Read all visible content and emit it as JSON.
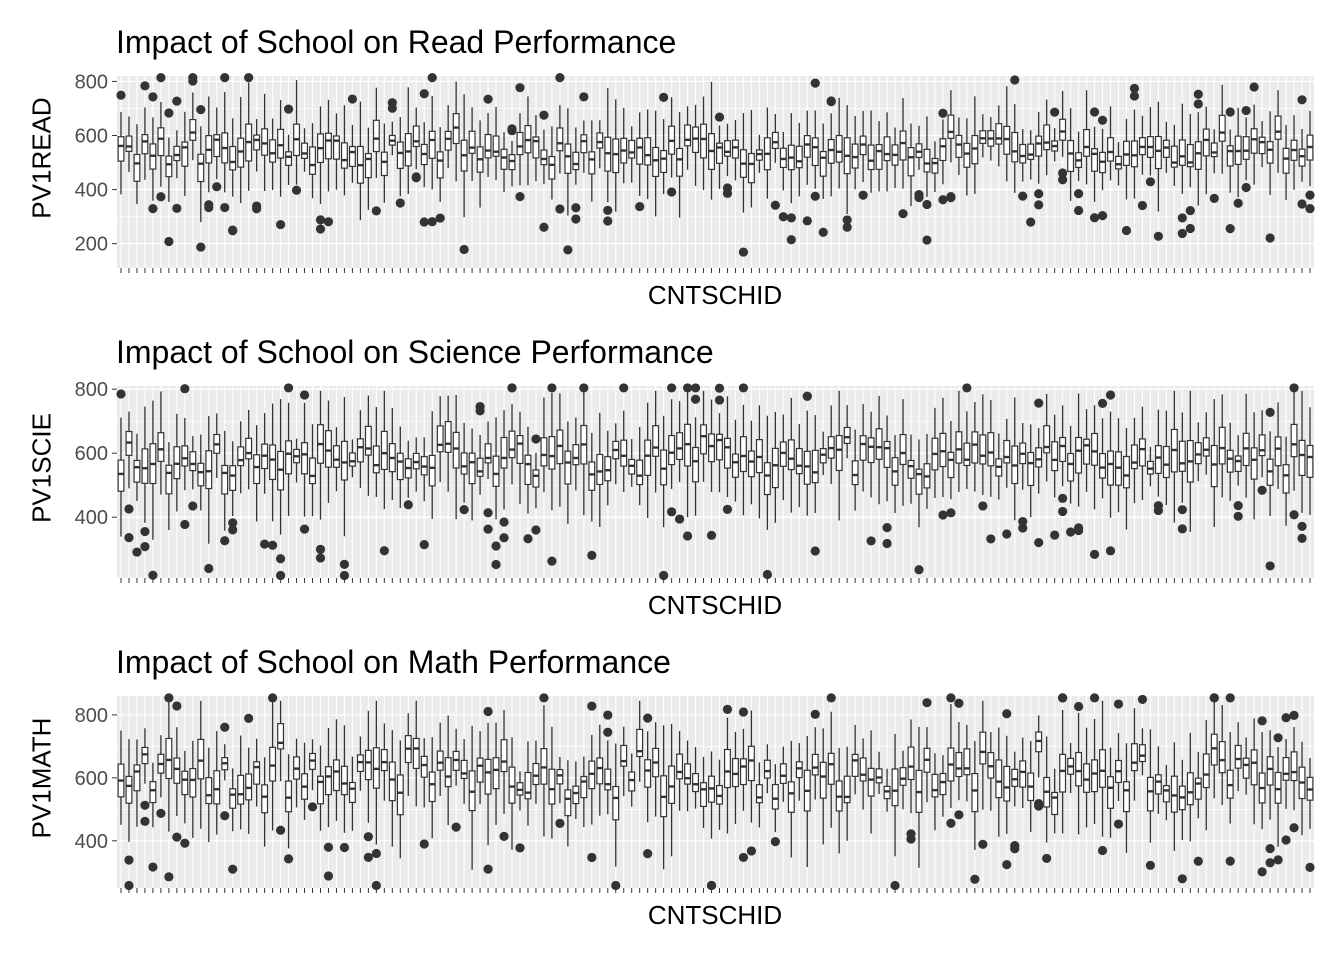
{
  "chart_data": [
    {
      "type": "box",
      "title": "Impact of School on Read Performance",
      "xlabel": "CNTSCHID",
      "ylabel": "PV1READ",
      "ylim": [
        110,
        820
      ],
      "yticks": [
        200,
        400,
        600,
        800
      ],
      "grid": true,
      "x_tick_labels_shown": false,
      "n_categories": 150,
      "median_range": [
        440,
        640
      ],
      "colors": {
        "panel_bg": "#EBEBEB",
        "grid": "#FFFFFF",
        "box_line": "#333333",
        "outlier": "#333333",
        "axis_text": "#4D4D4D"
      }
    },
    {
      "type": "box",
      "title": "Impact of School on Science Performance",
      "xlabel": "CNTSCHID",
      "ylabel": "PV1SCIE",
      "ylim": [
        210,
        810
      ],
      "yticks": [
        400,
        600,
        800
      ],
      "grid": true,
      "x_tick_labels_shown": false,
      "n_categories": 150,
      "median_range": [
        470,
        690
      ],
      "colors": {
        "panel_bg": "#EBEBEB",
        "grid": "#FFFFFF",
        "box_line": "#333333",
        "outlier": "#333333",
        "axis_text": "#4D4D4D"
      }
    },
    {
      "type": "box",
      "title": "Impact of School on Math Performance",
      "xlabel": "CNTSCHID",
      "ylabel": "PV1MATH",
      "ylim": [
        250,
        860
      ],
      "yticks": [
        400,
        600,
        800
      ],
      "grid": true,
      "x_tick_labels_shown": false,
      "n_categories": 150,
      "median_range": [
        470,
        720
      ],
      "colors": {
        "panel_bg": "#EBEBEB",
        "grid": "#FFFFFF",
        "box_line": "#333333",
        "outlier": "#333333",
        "axis_text": "#4D4D4D"
      }
    }
  ]
}
